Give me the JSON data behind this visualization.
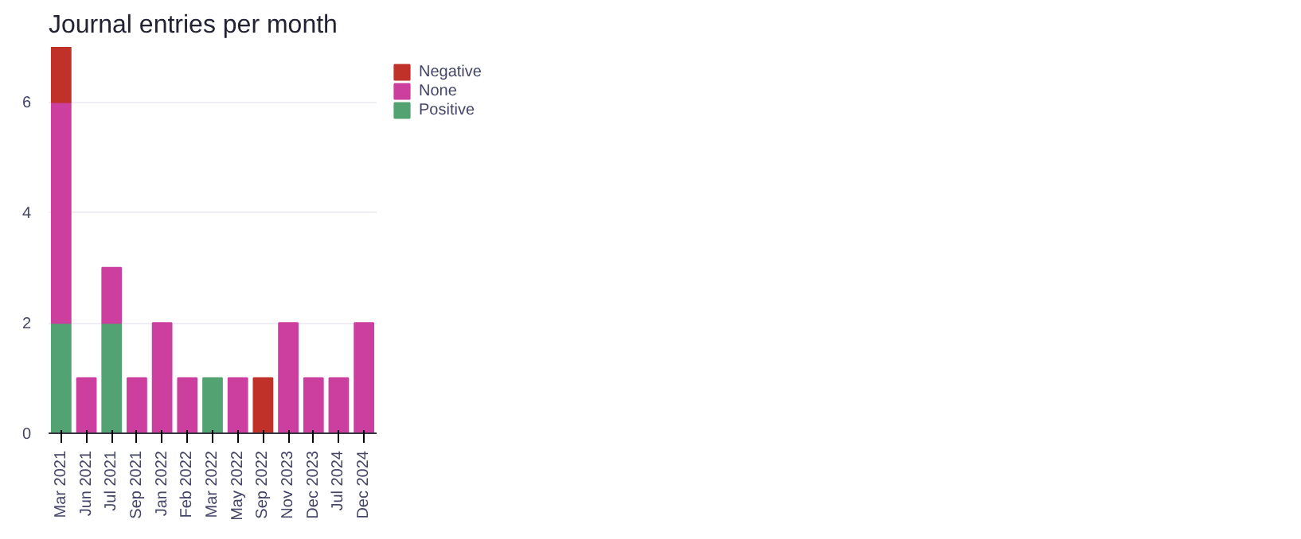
{
  "chart_data": {
    "type": "bar",
    "title": "Journal entries per month",
    "stacked": true,
    "categories": [
      "Mar 2021",
      "Jun 2021",
      "Jul 2021",
      "Sep 2021",
      "Jan 2022",
      "Feb 2022",
      "Mar 2022",
      "May 2022",
      "Sep 2022",
      "Nov 2023",
      "Dec 2023",
      "Jul 2024",
      "Dec 2024"
    ],
    "series": [
      {
        "name": "Positive",
        "color": "#53a271",
        "values": [
          2,
          null,
          2,
          null,
          null,
          null,
          1,
          null,
          null,
          null,
          null,
          null,
          null
        ]
      },
      {
        "name": "None",
        "color": "#cc3f9f",
        "values": [
          4,
          1,
          1,
          1,
          2,
          1,
          null,
          1,
          null,
          2,
          1,
          1,
          2
        ]
      },
      {
        "name": "Negative",
        "color": "#c0312a",
        "values": [
          1,
          null,
          null,
          null,
          null,
          null,
          null,
          null,
          1,
          null,
          null,
          null,
          null
        ]
      }
    ],
    "ylim": [
      0,
      7
    ],
    "yticks": [
      0,
      2,
      4,
      6
    ],
    "grid": "y",
    "legend": "top right"
  }
}
